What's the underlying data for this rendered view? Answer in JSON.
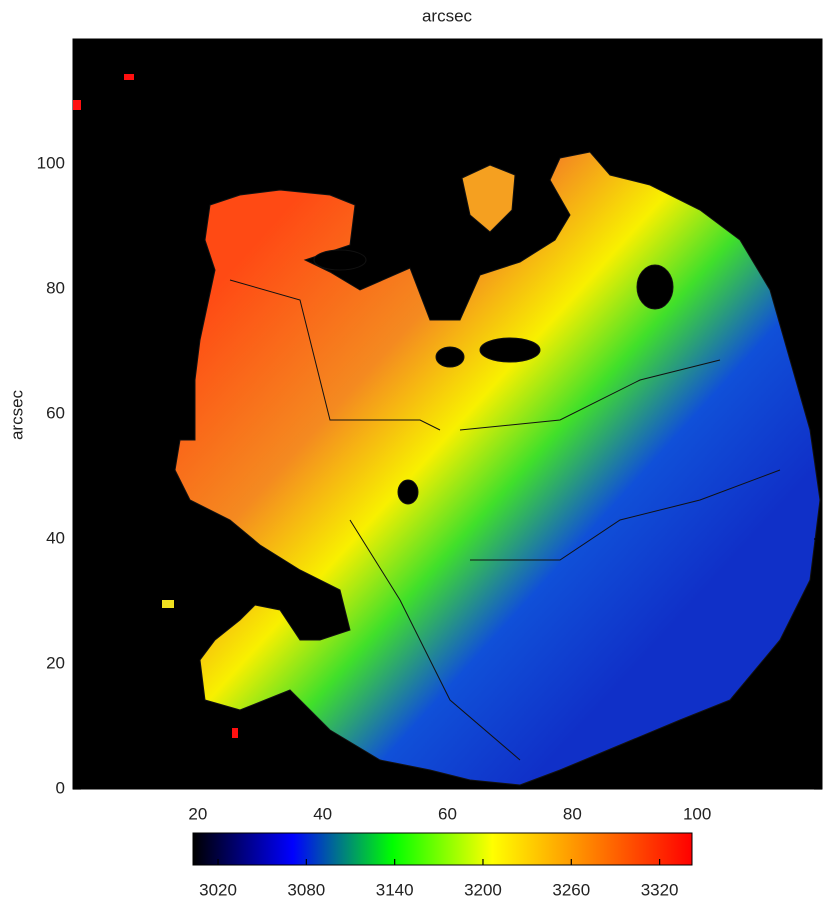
{
  "chart_data": {
    "type": "image",
    "xlabel": "arcsec",
    "ylabel": "arcsec",
    "xlim": [
      0,
      120
    ],
    "ylim": [
      0,
      120
    ],
    "xticks": [
      20,
      40,
      60,
      80,
      100
    ],
    "yticks": [
      0,
      20,
      40,
      60,
      80,
      100
    ],
    "colorbar": {
      "clim": [
        3003,
        3342
      ],
      "ticks": [
        3020,
        3080,
        3140,
        3200,
        3260,
        3320
      ],
      "colormap": [
        "#000000",
        "#0000ff",
        "#00ff00",
        "#ffff00",
        "#ff8000",
        "#ff0000"
      ]
    }
  }
}
